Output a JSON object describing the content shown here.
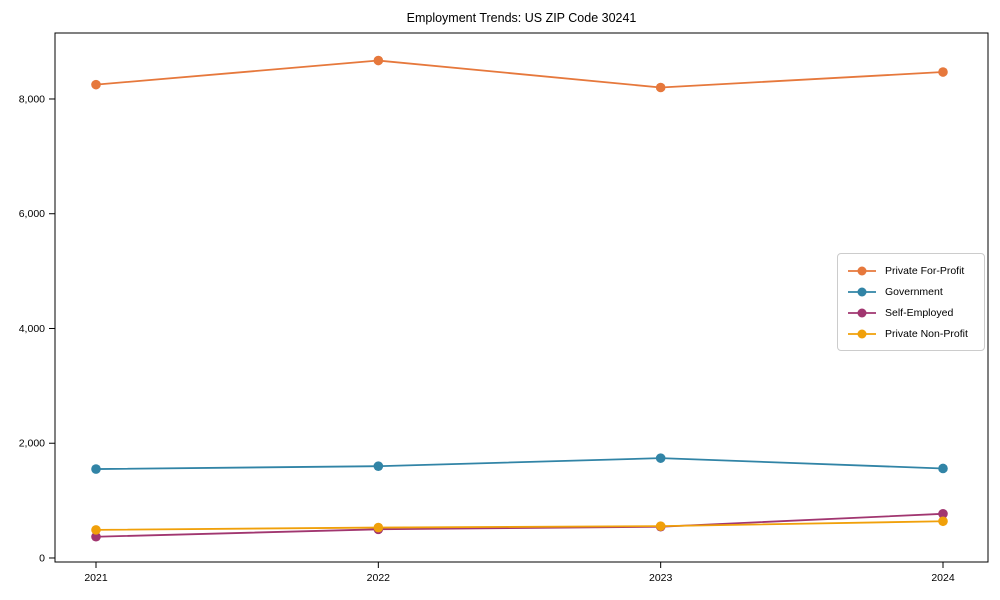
{
  "figure": {
    "background": "#ffffff",
    "axis_color": "#000000"
  },
  "chart_data": {
    "type": "line",
    "title": "Employment Trends: US ZIP Code 30241",
    "xlabel": "",
    "ylabel": "",
    "categories": [
      "2021",
      "2022",
      "2023",
      "2024"
    ],
    "series": [
      {
        "name": "Private For-Profit",
        "color": "#E6783C",
        "values": [
          8250,
          8670,
          8200,
          8470
        ]
      },
      {
        "name": "Government",
        "color": "#3184A6",
        "values": [
          1550,
          1600,
          1740,
          1560
        ]
      },
      {
        "name": "Self-Employed",
        "color": "#A13670",
        "values": [
          370,
          500,
          545,
          770
        ]
      },
      {
        "name": "Private Non-Profit",
        "color": "#F0A00A",
        "values": [
          490,
          530,
          555,
          640
        ]
      }
    ],
    "ylim": [
      -70,
      9150
    ],
    "yticks": [
      {
        "value": 0,
        "label": "0"
      },
      {
        "value": 2000,
        "label": "2,000"
      },
      {
        "value": 4000,
        "label": "4,000"
      },
      {
        "value": 6000,
        "label": "6,000"
      },
      {
        "value": 8000,
        "label": "8,000"
      }
    ],
    "grid": false,
    "marker": "circle",
    "legend_position": "center-right"
  }
}
